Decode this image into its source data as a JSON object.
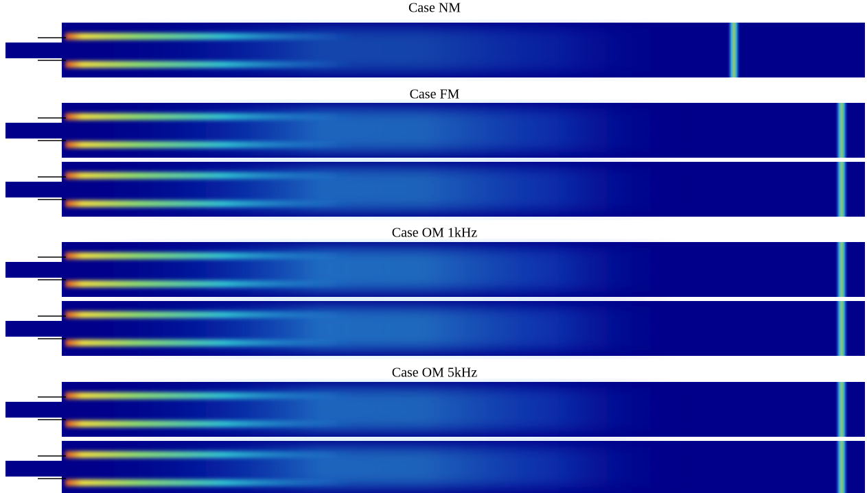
{
  "captions": [
    "Case NM",
    "Case FM",
    "Case OM 1kHz",
    "Case OM 5kHz"
  ]
}
